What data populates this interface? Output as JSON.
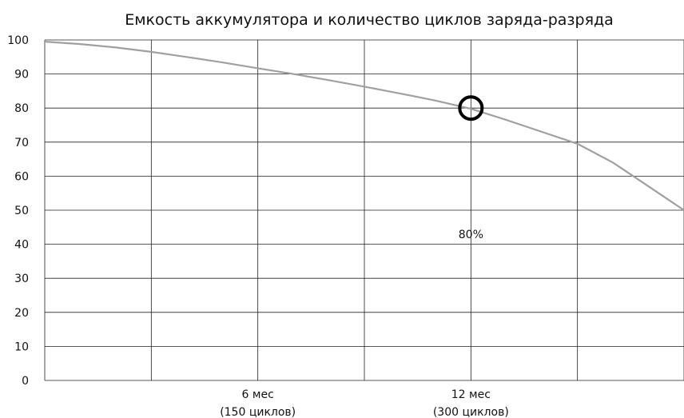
{
  "chart_data": {
    "type": "line",
    "title": "Емкость аккумулятора и количество циклов заряда-разряда",
    "xlabel": "",
    "ylabel": "",
    "ylim": [
      0,
      100
    ],
    "xlim": [
      0,
      18
    ],
    "yticks": [
      0,
      10,
      20,
      30,
      40,
      50,
      60,
      70,
      80,
      90,
      100
    ],
    "xticks": [
      {
        "x": 6,
        "line1": "6 мес",
        "line2": "(150 циклов)"
      },
      {
        "x": 12,
        "line1": "12 мес",
        "line2": "(300 циклов)"
      }
    ],
    "grid": true,
    "series": [
      {
        "color": "#a0a0a0",
        "points": [
          [
            0,
            99.5
          ],
          [
            1,
            98.8
          ],
          [
            2,
            97.8
          ],
          [
            3,
            96.5
          ],
          [
            4,
            95
          ],
          [
            5,
            93.4
          ],
          [
            6,
            91.7
          ],
          [
            7,
            90
          ],
          [
            8,
            88.2
          ],
          [
            9,
            86.3
          ],
          [
            10,
            84.3
          ],
          [
            11,
            82.2
          ],
          [
            12,
            79.8
          ],
          [
            13,
            76.5
          ],
          [
            14,
            73
          ],
          [
            15,
            69.5
          ],
          [
            16,
            64
          ],
          [
            17,
            57
          ],
          [
            18,
            50
          ]
        ]
      }
    ],
    "marker": {
      "x": 12,
      "y": 80,
      "shape": "circle"
    },
    "annotations": [
      {
        "text": "80%",
        "x": 12,
        "y": 43
      }
    ]
  }
}
